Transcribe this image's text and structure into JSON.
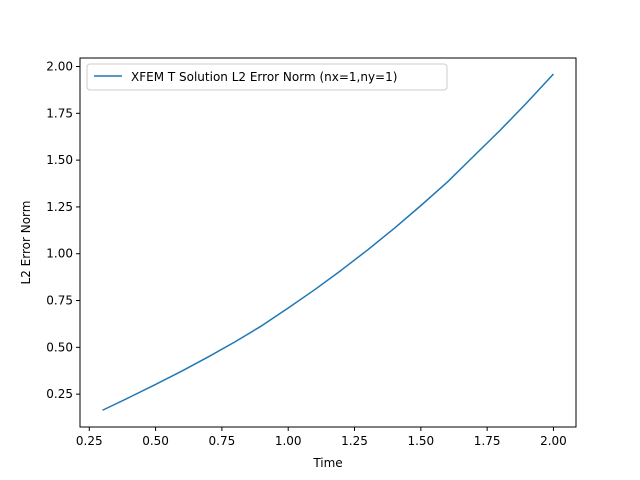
{
  "chart_data": {
    "type": "line",
    "title": "",
    "xlabel": "Time",
    "ylabel": "L2 Error Norm",
    "xlim": [
      0.215,
      2.085
    ],
    "ylim": [
      0.0745,
      2.0455
    ],
    "xticks": [
      0.25,
      0.5,
      0.75,
      1.0,
      1.25,
      1.5,
      1.75,
      2.0
    ],
    "xtick_labels": [
      "0.25",
      "0.50",
      "0.75",
      "1.00",
      "1.25",
      "1.50",
      "1.75",
      "2.00"
    ],
    "yticks": [
      0.25,
      0.5,
      0.75,
      1.0,
      1.25,
      1.5,
      1.75,
      2.0
    ],
    "ytick_labels": [
      "0.25",
      "0.50",
      "0.75",
      "1.00",
      "1.25",
      "1.50",
      "1.75",
      "2.00"
    ],
    "grid": false,
    "legend_position": "top-left",
    "series": [
      {
        "name": "XFEM T Solution L2 Error Norm (nx=1,ny=1)",
        "color": "#1f77b4",
        "x": [
          0.3,
          0.4,
          0.5,
          0.6,
          0.7,
          0.8,
          0.9,
          1.0,
          1.1,
          1.2,
          1.3,
          1.4,
          1.5,
          1.6,
          1.7,
          1.8,
          1.9,
          2.0
        ],
        "y": [
          0.164,
          0.232,
          0.302,
          0.374,
          0.45,
          0.53,
          0.615,
          0.71,
          0.808,
          0.912,
          1.021,
          1.136,
          1.257,
          1.383,
          1.522,
          1.661,
          1.807,
          1.96
        ]
      }
    ]
  }
}
